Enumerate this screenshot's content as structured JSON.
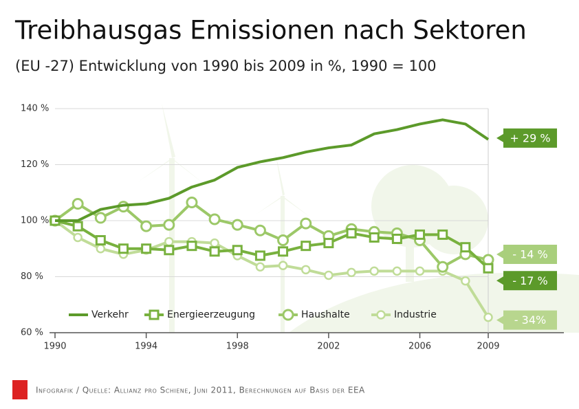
{
  "chart_data": {
    "type": "line",
    "title": "Treibhausgas Emissionen nach Sektoren",
    "subtitle": "(EU -27) Entwicklung von 1990 bis 2009 in %, 1990 = 100",
    "source": "Infografik / Quelle: Allianz pro Schiene, Juni 2011, Berechnungen auf Basis der EEA",
    "x": [
      1990,
      1991,
      1992,
      1993,
      1994,
      1995,
      1996,
      1997,
      1998,
      1999,
      2000,
      2001,
      2002,
      2003,
      2004,
      2005,
      2006,
      2007,
      2008,
      2009
    ],
    "xlim": [
      1990,
      2009
    ],
    "xticks": [
      1990,
      1994,
      1998,
      2002,
      2006,
      2009
    ],
    "ylim": [
      60,
      140
    ],
    "yticks": [
      {
        "value": 60,
        "label": "60 %"
      },
      {
        "value": 80,
        "label": "80 %"
      },
      {
        "value": 100,
        "label": "100 %"
      },
      {
        "value": 120,
        "label": "120 %"
      },
      {
        "value": 140,
        "label": "140 %"
      }
    ],
    "grid": true,
    "series": [
      {
        "name": "Verkehr",
        "color": "#5c9a2a",
        "marker": "none",
        "label": "+ 29 %",
        "label_color": "#5c9a2a",
        "values": [
          100,
          100,
          104,
          105.5,
          106,
          108,
          112,
          114.5,
          119,
          121,
          122.5,
          124.5,
          126,
          127,
          131,
          132.5,
          134.5,
          136,
          134.5,
          129
        ]
      },
      {
        "name": "Energieerzeugung",
        "color": "#78b13e",
        "marker": "square",
        "label": "- 17 %",
        "label_color": "#5c9a2a",
        "values": [
          100,
          98,
          93,
          90,
          90,
          89.5,
          91,
          89,
          89.5,
          87.5,
          89,
          91,
          92,
          95.5,
          94,
          93.5,
          95,
          95,
          90.5,
          83
        ]
      },
      {
        "name": "Haushalte",
        "color": "#9cc868",
        "marker": "circle",
        "label": "- 14 %",
        "label_color": "#a9cf7c",
        "values": [
          100,
          106,
          101,
          105,
          98,
          98.5,
          106.5,
          100.5,
          98.5,
          96.5,
          93,
          99,
          94.5,
          97,
          96,
          95.5,
          93,
          83.5,
          88,
          86
        ]
      },
      {
        "name": "Industrie",
        "color": "#c0dc98",
        "marker": "small-circle",
        "label": "- 34%",
        "label_color": "#b8d68e",
        "values": [
          100,
          94,
          90,
          88,
          89.5,
          92.5,
          92.5,
          92,
          87.5,
          83.5,
          84,
          82.5,
          80.5,
          81.5,
          82,
          82,
          82,
          82,
          78.5,
          65.5
        ]
      }
    ]
  }
}
